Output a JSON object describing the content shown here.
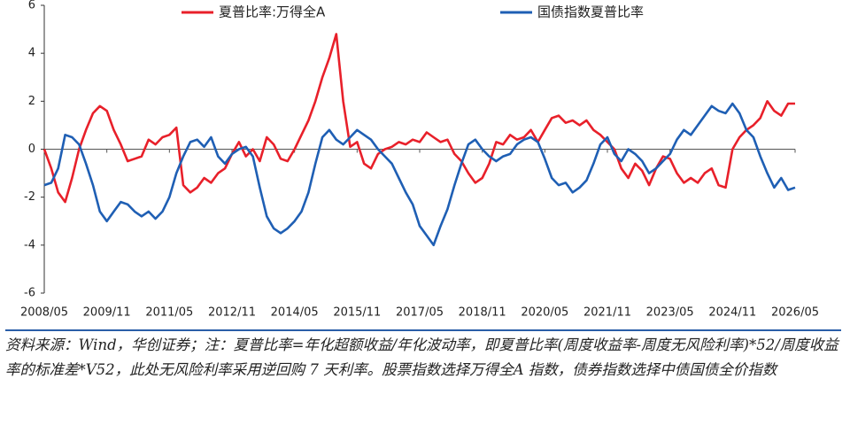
{
  "chart_data": {
    "type": "line",
    "categories": [
      "2008/05",
      null,
      null,
      null,
      null,
      null,
      null,
      null,
      null,
      "2009/11",
      null,
      null,
      null,
      null,
      null,
      null,
      null,
      null,
      "2011/05",
      null,
      null,
      null,
      null,
      null,
      null,
      null,
      null,
      "2012/11",
      null,
      null,
      null,
      null,
      null,
      null,
      null,
      null,
      "2014/05",
      null,
      null,
      null,
      null,
      null,
      null,
      null,
      null,
      "2015/11",
      null,
      null,
      null,
      null,
      null,
      null,
      null,
      null,
      "2017/05",
      null,
      null,
      null,
      null,
      null,
      null,
      null,
      null,
      "2018/11",
      null,
      null,
      null,
      null,
      null,
      null,
      null,
      null,
      "2020/05",
      null,
      null,
      null,
      null,
      null,
      null,
      null,
      null,
      "2021/11",
      null,
      null,
      null,
      null,
      null,
      null,
      null,
      null,
      "2023/05",
      null,
      null,
      null,
      null,
      null,
      null,
      null,
      null,
      "2024/11",
      null,
      null,
      null,
      null,
      null,
      null,
      null,
      null,
      "2026/05"
    ],
    "series": [
      {
        "name": "夏普比率:万得全A",
        "color": "#e8202a",
        "values": [
          0,
          -0.8,
          -1.8,
          -2.2,
          -1.2,
          0,
          0.8,
          1.5,
          1.8,
          1.6,
          0.8,
          0.2,
          -0.5,
          -0.4,
          -0.3,
          0.4,
          0.2,
          0.5,
          0.6,
          0.9,
          -1.5,
          -1.8,
          -1.6,
          -1.2,
          -1.4,
          -1.0,
          -0.8,
          -0.2,
          0.3,
          -0.3,
          0,
          -0.5,
          0.5,
          0.2,
          -0.4,
          -0.5,
          0,
          0.6,
          1.2,
          2.0,
          3.0,
          3.8,
          4.8,
          2.0,
          0.1,
          0.3,
          -0.6,
          -0.8,
          -0.2,
          0,
          0.1,
          0.3,
          0.2,
          0.4,
          0.3,
          0.7,
          0.5,
          0.3,
          0.4,
          -0.2,
          -0.5,
          -1.0,
          -1.4,
          -1.2,
          -0.6,
          0.3,
          0.2,
          0.6,
          0.4,
          0.5,
          0.8,
          0.3,
          0.8,
          1.3,
          1.4,
          1.1,
          1.2,
          1.0,
          1.2,
          0.8,
          0.6,
          0.3,
          0,
          -0.8,
          -1.2,
          -0.6,
          -0.9,
          -1.5,
          -0.8,
          -0.3,
          -0.4,
          -1.0,
          -1.4,
          -1.2,
          -1.4,
          -1.0,
          -0.8,
          -1.5,
          -1.6,
          0,
          0.5,
          0.8,
          1.0,
          1.3,
          2.0,
          1.6,
          1.4,
          1.9,
          1.9
        ]
      },
      {
        "name": "国债指数夏普比率",
        "color": "#1f5fb4",
        "values": [
          -1.5,
          -1.4,
          -0.8,
          0.6,
          0.5,
          0.2,
          -0.6,
          -1.5,
          -2.6,
          -3.0,
          -2.6,
          -2.2,
          -2.3,
          -2.6,
          -2.8,
          -2.6,
          -2.9,
          -2.6,
          -2.0,
          -1.0,
          -0.3,
          0.3,
          0.4,
          0.1,
          0.5,
          -0.3,
          -0.6,
          -0.2,
          0,
          0.1,
          -0.3,
          -1.6,
          -2.8,
          -3.3,
          -3.5,
          -3.3,
          -3.0,
          -2.6,
          -1.8,
          -0.6,
          0.5,
          0.8,
          0.4,
          0.2,
          0.5,
          0.8,
          0.6,
          0.4,
          0,
          -0.3,
          -0.6,
          -1.2,
          -1.8,
          -2.3,
          -3.2,
          -3.6,
          -4.0,
          -3.2,
          -2.5,
          -1.5,
          -0.6,
          0.2,
          0.4,
          0,
          -0.3,
          -0.5,
          -0.3,
          -0.2,
          0.2,
          0.4,
          0.5,
          0.3,
          -0.4,
          -1.2,
          -1.5,
          -1.4,
          -1.8,
          -1.6,
          -1.3,
          -0.6,
          0.2,
          0.5,
          -0.2,
          -0.5,
          0,
          -0.2,
          -0.5,
          -1.0,
          -0.8,
          -0.5,
          -0.2,
          0.4,
          0.8,
          0.6,
          1.0,
          1.4,
          1.8,
          1.6,
          1.5,
          1.9,
          1.5,
          0.8,
          0.5,
          -0.3,
          -1.0,
          -1.6,
          -1.2,
          -1.7,
          -1.6
        ]
      }
    ],
    "ylim": [
      -6,
      6
    ],
    "yticks": [
      -6,
      -4,
      -2,
      0,
      2,
      4,
      6
    ],
    "grid": false,
    "note": "资料来源：Wind，华创证券；注：夏普比率=年化超额收益/年化波动率，即夏普比率(周度收益率-周度无风险利率)*52/周度收益率的标准差*V52，此处无风险利率采用逆回购 7 天利率。股票指数选择万得全A 指数，债券指数选择中债国债全价指数"
  }
}
